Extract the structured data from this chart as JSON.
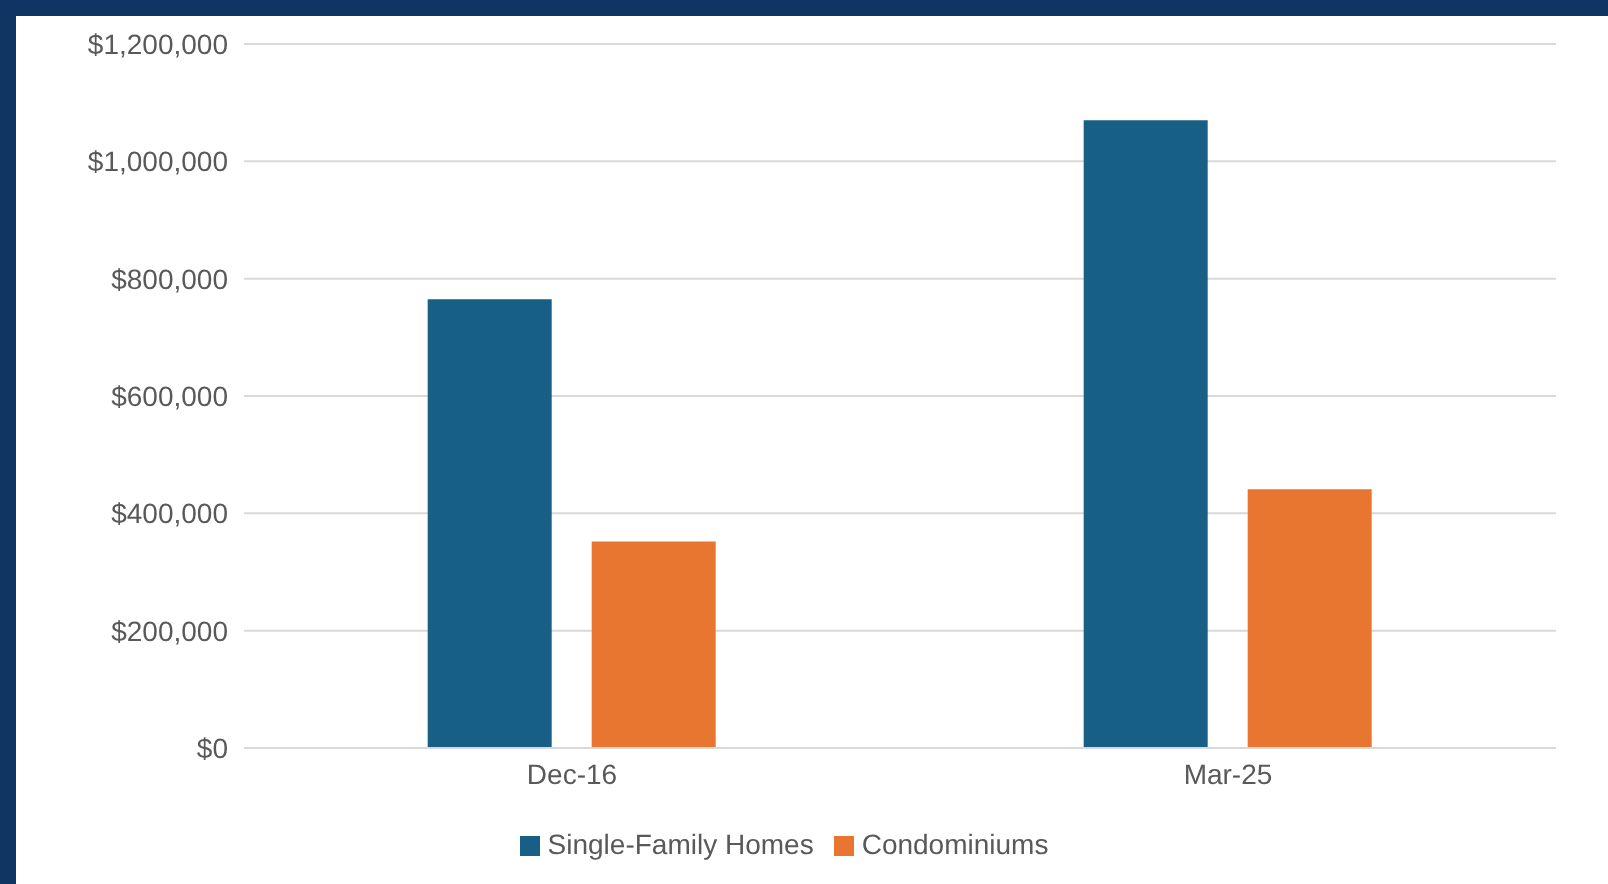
{
  "chart_data": {
    "type": "bar",
    "categories": [
      "Dec-16",
      "Mar-25"
    ],
    "series": [
      {
        "name": "Single-Family Homes",
        "color": "#175f85",
        "values": [
          765000,
          1070000
        ]
      },
      {
        "name": "Condominiums",
        "color": "#e87530",
        "values": [
          352000,
          441000
        ]
      }
    ],
    "ylim": [
      0,
      1200000
    ],
    "yticks": [
      {
        "value": 0,
        "label": "$0"
      },
      {
        "value": 200000,
        "label": "$200,000"
      },
      {
        "value": 400000,
        "label": "$400,000"
      },
      {
        "value": 600000,
        "label": "$600,000"
      },
      {
        "value": 800000,
        "label": "$800,000"
      },
      {
        "value": 1000000,
        "label": "$1,000,000"
      },
      {
        "value": 1200000,
        "label": "$1,200,000"
      }
    ],
    "grid": "y",
    "legend": "bottom"
  }
}
